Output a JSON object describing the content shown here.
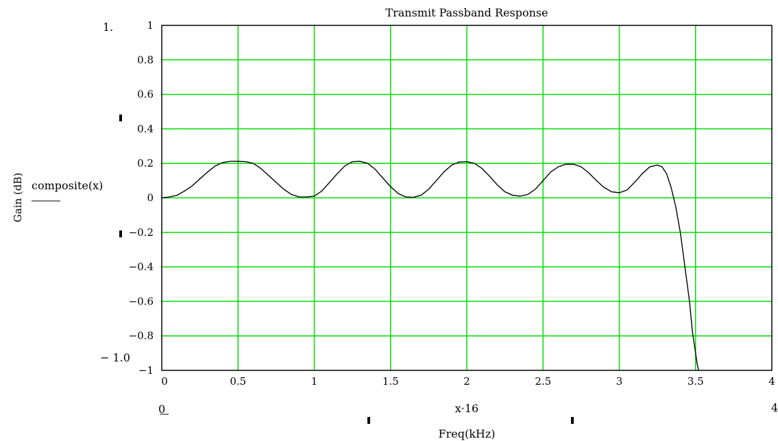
{
  "chart_data": {
    "type": "line",
    "title": "Transmit Passband Response",
    "xlabel": "Freq(kHz)",
    "ylabel": "Gain (dB)",
    "xlim": [
      0,
      4
    ],
    "ylim": [
      -1,
      1
    ],
    "x_ticks": [
      "0",
      "0.5",
      "1",
      "1.5",
      "2",
      "2.5",
      "3",
      "3.5",
      "4"
    ],
    "y_ticks": [
      "1",
      "0.8",
      "0.6",
      "0.4",
      "0.2",
      "0",
      "−0.2",
      "−0.4",
      "−0.6",
      "−0.8",
      "−1"
    ],
    "grid": true,
    "grid_color": "#00dd00",
    "line_color": "#000000",
    "series": [
      {
        "name": "composite(x)",
        "x": [
          0,
          0.05,
          0.1,
          0.15,
          0.2,
          0.25,
          0.3,
          0.35,
          0.4,
          0.45,
          0.5,
          0.55,
          0.6,
          0.65,
          0.7,
          0.75,
          0.8,
          0.85,
          0.9,
          0.95,
          1.0,
          1.05,
          1.1,
          1.15,
          1.2,
          1.25,
          1.3,
          1.35,
          1.4,
          1.45,
          1.5,
          1.55,
          1.6,
          1.65,
          1.7,
          1.75,
          1.8,
          1.85,
          1.9,
          1.95,
          2.0,
          2.05,
          2.1,
          2.15,
          2.2,
          2.25,
          2.3,
          2.35,
          2.4,
          2.45,
          2.5,
          2.55,
          2.6,
          2.65,
          2.7,
          2.75,
          2.8,
          2.85,
          2.9,
          2.95,
          3.0,
          3.05,
          3.1,
          3.15,
          3.2,
          3.25,
          3.28,
          3.31,
          3.34,
          3.37,
          3.4,
          3.43,
          3.46,
          3.48,
          3.5,
          3.51,
          3.52
        ],
        "y": [
          0.0,
          0.005,
          0.015,
          0.04,
          0.07,
          0.11,
          0.15,
          0.185,
          0.205,
          0.212,
          0.212,
          0.21,
          0.2,
          0.17,
          0.13,
          0.09,
          0.05,
          0.02,
          0.005,
          0.005,
          0.01,
          0.04,
          0.09,
          0.14,
          0.185,
          0.21,
          0.212,
          0.2,
          0.165,
          0.115,
          0.065,
          0.025,
          0.005,
          0.003,
          0.015,
          0.05,
          0.1,
          0.15,
          0.19,
          0.208,
          0.21,
          0.2,
          0.17,
          0.125,
          0.075,
          0.035,
          0.015,
          0.01,
          0.02,
          0.05,
          0.1,
          0.15,
          0.18,
          0.195,
          0.195,
          0.18,
          0.145,
          0.1,
          0.06,
          0.035,
          0.03,
          0.045,
          0.09,
          0.14,
          0.18,
          0.19,
          0.18,
          0.14,
          0.06,
          -0.05,
          -0.2,
          -0.4,
          -0.6,
          -0.78,
          -0.9,
          -0.96,
          -1.0
        ]
      }
    ]
  },
  "mathcad_labels": {
    "y_top_limit": "1.",
    "y_bottom_limit": "− 1.0",
    "x_left_limit": "0",
    "x_right_limit": "4",
    "x_variable": "x·16",
    "y_expression": "composite(x)"
  }
}
